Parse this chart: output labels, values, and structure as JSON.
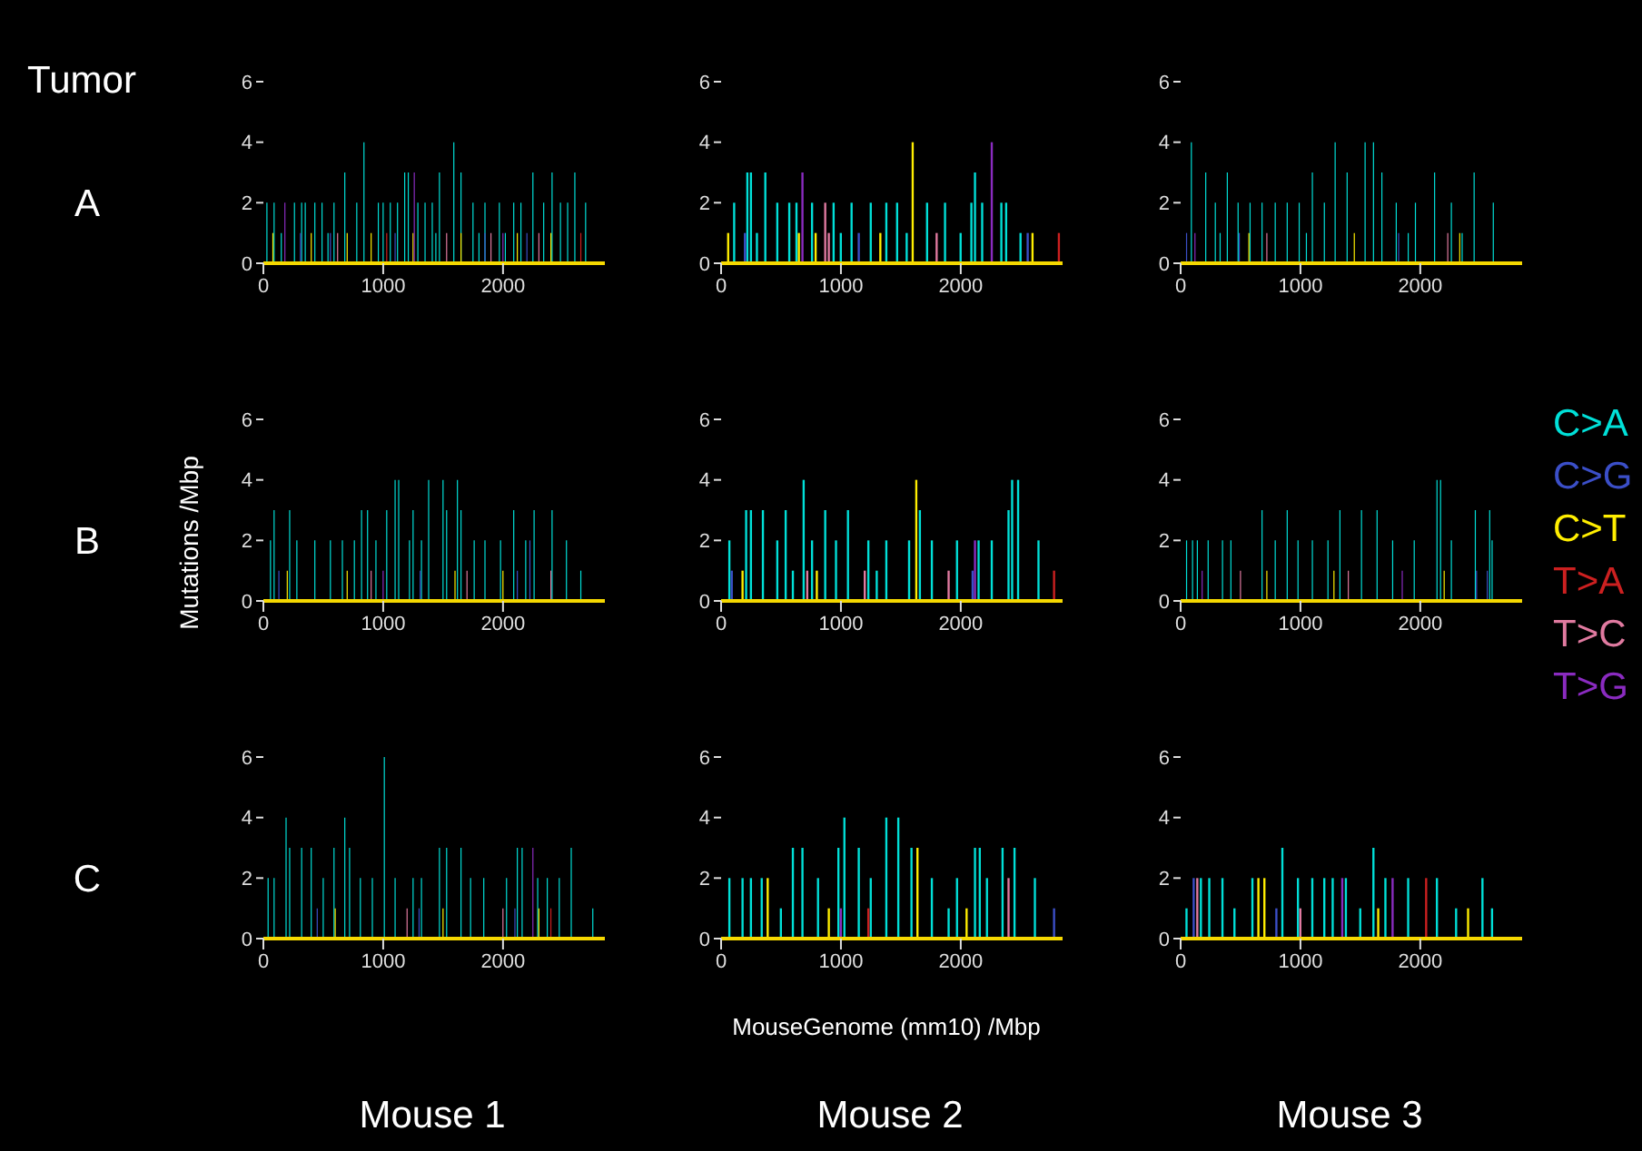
{
  "chart_data": [
    {
      "type": "bar",
      "annotations": [
        "A",
        "Tumor"
      ],
      "xlim": [
        0,
        2850
      ],
      "xticks": [
        0,
        1000,
        2000
      ],
      "ylim": [
        0,
        6
      ],
      "yticks": [
        0,
        2,
        4,
        6
      ],
      "series": [
        {
          "color": "#00e0d8",
          "x": [
            30,
            90,
            150,
            260,
            320,
            350,
            430,
            490,
            540,
            590,
            680,
            780,
            840,
            960,
            1000,
            1060,
            1120,
            1180,
            1210,
            1290,
            1350,
            1410,
            1440,
            1470,
            1590,
            1650,
            1750,
            1800,
            1850,
            1970,
            2020,
            2090,
            2150,
            2250,
            2340,
            2410,
            2480,
            2540,
            2600,
            2690
          ],
          "values": [
            2,
            2,
            1,
            2,
            2,
            2,
            2,
            2,
            1,
            2,
            3,
            2,
            4,
            2,
            2,
            2,
            2,
            3,
            3,
            2,
            2,
            2,
            1,
            3,
            4,
            3,
            2,
            1,
            2,
            2,
            1,
            2,
            2,
            3,
            2,
            3,
            2,
            2,
            3,
            2
          ]
        },
        {
          "color": "#3b4fc8",
          "x": [
            310,
            560,
            1100,
            1850,
            2200
          ],
          "values": [
            1,
            1,
            1,
            1,
            1
          ]
        },
        {
          "color": "#ffee00",
          "x": [
            80,
            400,
            700,
            900,
            1250,
            1650,
            2120,
            2400
          ],
          "values": [
            1,
            1,
            1,
            1,
            1,
            1,
            1,
            1
          ]
        },
        {
          "color": "#cc2020",
          "x": [
            1030,
            2650
          ],
          "values": [
            1,
            1
          ]
        },
        {
          "color": "#e07aa0",
          "x": [
            620,
            1530,
            1900,
            2300
          ],
          "values": [
            1,
            1,
            1,
            1
          ]
        },
        {
          "color": "#8a2bc0",
          "x": [
            180,
            1260,
            2000
          ],
          "values": [
            2,
            3,
            1
          ]
        }
      ]
    },
    {
      "type": "bar",
      "xlim": [
        0,
        2850
      ],
      "xticks": [
        0,
        1000,
        2000
      ],
      "ylim": [
        0,
        6
      ],
      "yticks": [
        0,
        2,
        4,
        6
      ],
      "series": [
        {
          "color": "#00e0d8",
          "x": [
            110,
            220,
            250,
            300,
            370,
            470,
            570,
            630,
            760,
            940,
            1000,
            1090,
            1250,
            1380,
            1470,
            1550,
            1720,
            1870,
            2000,
            2090,
            2120,
            2180,
            2340,
            2380,
            2500
          ],
          "values": [
            2,
            3,
            3,
            1,
            3,
            2,
            2,
            2,
            2,
            2,
            1,
            2,
            2,
            2,
            2,
            1,
            2,
            2,
            1,
            2,
            3,
            2,
            2,
            2,
            1
          ]
        },
        {
          "color": "#3b4fc8",
          "x": [
            200,
            1150,
            2560
          ],
          "values": [
            1,
            1,
            1
          ]
        },
        {
          "color": "#ffee00",
          "x": [
            60,
            650,
            790,
            1330,
            1600,
            2600
          ],
          "values": [
            1,
            1,
            1,
            1,
            4,
            1
          ]
        },
        {
          "color": "#cc2020",
          "x": [
            2820
          ],
          "values": [
            1
          ]
        },
        {
          "color": "#e07aa0",
          "x": [
            870,
            900,
            1800
          ],
          "values": [
            2,
            1,
            1
          ]
        },
        {
          "color": "#8a2bc0",
          "x": [
            680,
            2260
          ],
          "values": [
            3,
            4
          ]
        }
      ]
    },
    {
      "type": "bar",
      "xlim": [
        0,
        2850
      ],
      "xticks": [
        0,
        1000,
        2000
      ],
      "ylim": [
        0,
        6
      ],
      "yticks": [
        0,
        2,
        4,
        6
      ],
      "series": [
        {
          "color": "#00e0d8",
          "x": [
            90,
            210,
            290,
            330,
            390,
            480,
            580,
            680,
            790,
            890,
            990,
            1050,
            1100,
            1200,
            1290,
            1390,
            1540,
            1610,
            1680,
            1800,
            1900,
            1960,
            2120,
            2260,
            2350,
            2450,
            2610
          ],
          "values": [
            4,
            3,
            2,
            1,
            3,
            2,
            2,
            2,
            2,
            2,
            2,
            1,
            3,
            2,
            4,
            3,
            4,
            4,
            3,
            2,
            1,
            2,
            3,
            2,
            1,
            3,
            2
          ]
        },
        {
          "color": "#3b4fc8",
          "x": [
            50,
            490,
            1820
          ],
          "values": [
            1,
            1,
            1
          ]
        },
        {
          "color": "#ffee00",
          "x": [
            570,
            1450,
            2330
          ],
          "values": [
            1,
            1,
            1
          ]
        },
        {
          "color": "#e07aa0",
          "x": [
            720,
            2230
          ],
          "values": [
            1,
            1
          ]
        },
        {
          "color": "#8a2bc0",
          "x": [
            120
          ],
          "values": [
            1
          ]
        }
      ]
    },
    {
      "type": "bar",
      "annotations": [
        "B"
      ],
      "ylabel": "Mutations /Mbp",
      "xlim": [
        0,
        2850
      ],
      "xticks": [
        0,
        1000,
        2000
      ],
      "ylim": [
        0,
        6
      ],
      "yticks": [
        0,
        2,
        4,
        6
      ],
      "series": [
        {
          "color": "#00e0d8",
          "x": [
            60,
            90,
            220,
            280,
            430,
            560,
            660,
            760,
            820,
            870,
            940,
            1030,
            1100,
            1130,
            1220,
            1250,
            1320,
            1380,
            1500,
            1530,
            1620,
            1650,
            1760,
            1850,
            1980,
            2090,
            2190,
            2260,
            2410,
            2530,
            2650
          ],
          "values": [
            2,
            3,
            3,
            2,
            2,
            2,
            2,
            2,
            3,
            3,
            2,
            3,
            4,
            4,
            2,
            3,
            2,
            4,
            4,
            3,
            4,
            3,
            2,
            2,
            2,
            3,
            2,
            3,
            3,
            2,
            1
          ]
        },
        {
          "color": "#3b4fc8",
          "x": [
            130,
            1310,
            2120,
            2225
          ],
          "values": [
            1,
            1,
            1,
            2
          ]
        },
        {
          "color": "#ffee00",
          "x": [
            200,
            700,
            1600,
            2000
          ],
          "values": [
            1,
            1,
            1,
            1
          ]
        },
        {
          "color": "#e07aa0",
          "x": [
            900,
            1700,
            2400
          ],
          "values": [
            1,
            1,
            1
          ]
        },
        {
          "color": "#8a2bc0",
          "x": [
            1000
          ],
          "values": [
            1
          ]
        }
      ]
    },
    {
      "type": "bar",
      "xlim": [
        0,
        2850
      ],
      "xticks": [
        0,
        1000,
        2000
      ],
      "ylim": [
        0,
        6
      ],
      "yticks": [
        0,
        2,
        4,
        6
      ],
      "series": [
        {
          "color": "#00e0d8",
          "x": [
            70,
            210,
            250,
            350,
            470,
            540,
            600,
            690,
            760,
            870,
            960,
            1060,
            1230,
            1300,
            1380,
            1570,
            1660,
            1760,
            1970,
            2150,
            2260,
            2400,
            2430,
            2480,
            2650
          ],
          "values": [
            2,
            3,
            3,
            3,
            2,
            3,
            1,
            4,
            2,
            3,
            2,
            3,
            2,
            1,
            2,
            2,
            3,
            2,
            2,
            2,
            2,
            3,
            4,
            4,
            2
          ]
        },
        {
          "color": "#3b4fc8",
          "x": [
            90,
            2100
          ],
          "values": [
            1,
            1
          ]
        },
        {
          "color": "#ffee00",
          "x": [
            180,
            800,
            1630
          ],
          "values": [
            1,
            1,
            4
          ]
        },
        {
          "color": "#cc2020",
          "x": [
            2780
          ],
          "values": [
            1
          ]
        },
        {
          "color": "#e07aa0",
          "x": [
            720,
            1200,
            1900
          ],
          "values": [
            1,
            1,
            1
          ]
        },
        {
          "color": "#8a2bc0",
          "x": [
            2120
          ],
          "values": [
            2
          ]
        }
      ]
    },
    {
      "type": "bar",
      "legend": "right",
      "xlim": [
        0,
        2850
      ],
      "xticks": [
        0,
        1000,
        2000
      ],
      "ylim": [
        0,
        6
      ],
      "yticks": [
        0,
        2,
        4,
        6
      ],
      "series": [
        {
          "name": "C>A",
          "color": "#00e0d8",
          "x": [
            50,
            100,
            140,
            230,
            350,
            420,
            680,
            790,
            890,
            980,
            1100,
            1230,
            1330,
            1510,
            1640,
            1770,
            1950,
            2140,
            2170,
            2260,
            2460,
            2580,
            2600
          ],
          "values": [
            2,
            2,
            2,
            2,
            2,
            2,
            3,
            2,
            3,
            2,
            2,
            2,
            3,
            3,
            3,
            2,
            2,
            4,
            4,
            2,
            3,
            3,
            2
          ]
        },
        {
          "name": "C>G",
          "color": "#3b4fc8",
          "x": [
            2470,
            2560
          ],
          "values": [
            1,
            1
          ]
        },
        {
          "name": "C>T",
          "color": "#ffee00",
          "x": [
            720,
            1280,
            2200
          ],
          "values": [
            1,
            1,
            1
          ]
        },
        {
          "name": "T>A",
          "color": "#cc2020"
        },
        {
          "name": "T>C",
          "color": "#e07aa0",
          "x": [
            500,
            1400
          ],
          "values": [
            1,
            1
          ]
        },
        {
          "name": "T>G",
          "color": "#8a2bc0",
          "x": [
            180,
            1850
          ],
          "values": [
            1,
            1
          ]
        }
      ]
    },
    {
      "type": "bar",
      "annotations": [
        "C",
        "Mouse 1"
      ],
      "xlim": [
        0,
        2850
      ],
      "xticks": [
        0,
        1000,
        2000
      ],
      "ylim": [
        0,
        6
      ],
      "yticks": [
        0,
        2,
        4,
        6
      ],
      "series": [
        {
          "color": "#00e0d8",
          "x": [
            40,
            90,
            190,
            220,
            320,
            400,
            500,
            590,
            680,
            720,
            810,
            910,
            1010,
            1100,
            1250,
            1320,
            1470,
            1530,
            1650,
            1730,
            1840,
            2030,
            2120,
            2160,
            2290,
            2370,
            2470,
            2570,
            2750
          ],
          "values": [
            2,
            2,
            4,
            3,
            3,
            3,
            2,
            3,
            4,
            3,
            2,
            2,
            6,
            2,
            2,
            2,
            3,
            3,
            3,
            2,
            2,
            2,
            3,
            3,
            2,
            2,
            2,
            3,
            1
          ]
        },
        {
          "color": "#3b4fc8",
          "x": [
            450,
            1300,
            2100
          ],
          "values": [
            1,
            1,
            1
          ]
        },
        {
          "color": "#ffee00",
          "x": [
            600,
            1500,
            2300
          ],
          "values": [
            1,
            1,
            1
          ]
        },
        {
          "color": "#cc2020",
          "x": [
            2400
          ],
          "values": [
            1
          ]
        },
        {
          "color": "#e07aa0",
          "x": [
            1200,
            2000
          ],
          "values": [
            1,
            1
          ]
        },
        {
          "color": "#8a2bc0",
          "x": [
            2250
          ],
          "values": [
            3
          ]
        }
      ]
    },
    {
      "type": "bar",
      "annotations": [
        "Mouse 2"
      ],
      "xlabel": "MouseGenome (mm10) /Mbp",
      "xlim": [
        0,
        2850
      ],
      "xticks": [
        0,
        1000,
        2000
      ],
      "ylim": [
        0,
        6
      ],
      "yticks": [
        0,
        2,
        4,
        6
      ],
      "series": [
        {
          "color": "#00e0d8",
          "x": [
            70,
            180,
            250,
            340,
            500,
            600,
            680,
            810,
            980,
            1030,
            1150,
            1250,
            1380,
            1480,
            1590,
            1760,
            1900,
            1970,
            2120,
            2160,
            2220,
            2350,
            2450,
            2620
          ],
          "values": [
            2,
            2,
            2,
            2,
            1,
            3,
            3,
            2,
            3,
            4,
            3,
            2,
            4,
            4,
            3,
            2,
            1,
            2,
            3,
            3,
            2,
            3,
            3,
            2
          ]
        },
        {
          "color": "#3b4fc8",
          "x": [
            2780
          ],
          "values": [
            1
          ]
        },
        {
          "color": "#ffee00",
          "x": [
            390,
            900,
            1640,
            2050
          ],
          "values": [
            2,
            1,
            3,
            1
          ]
        },
        {
          "color": "#cc2020",
          "x": [
            1230
          ],
          "values": [
            1
          ]
        },
        {
          "color": "#e07aa0",
          "x": [
            2400
          ],
          "values": [
            2
          ]
        },
        {
          "color": "#8a2bc0",
          "x": [
            1000
          ],
          "values": [
            1
          ]
        }
      ]
    },
    {
      "type": "bar",
      "annotations": [
        "Mouse 3"
      ],
      "xlim": [
        0,
        2850
      ],
      "xticks": [
        0,
        1000,
        2000
      ],
      "ylim": [
        0,
        6
      ],
      "yticks": [
        0,
        2,
        4,
        6
      ],
      "series": [
        {
          "color": "#00e0d8",
          "x": [
            50,
            170,
            240,
            350,
            450,
            600,
            850,
            980,
            1100,
            1200,
            1270,
            1380,
            1500,
            1610,
            1710,
            1900,
            2140,
            2300,
            2520,
            2600
          ],
          "values": [
            1,
            2,
            2,
            2,
            1,
            2,
            3,
            2,
            2,
            2,
            2,
            2,
            1,
            3,
            2,
            2,
            2,
            1,
            2,
            1
          ]
        },
        {
          "color": "#3b4fc8",
          "x": [
            110,
            800
          ],
          "values": [
            2,
            1
          ]
        },
        {
          "color": "#ffee00",
          "x": [
            650,
            700,
            1650,
            2400
          ],
          "values": [
            2,
            2,
            1,
            1
          ]
        },
        {
          "color": "#cc2020",
          "x": [
            2050
          ],
          "values": [
            2
          ]
        },
        {
          "color": "#e07aa0",
          "x": [
            140,
            1000
          ],
          "values": [
            2,
            1
          ]
        },
        {
          "color": "#8a2bc0",
          "x": [
            1350,
            1770
          ],
          "values": [
            2,
            2
          ]
        }
      ]
    }
  ]
}
